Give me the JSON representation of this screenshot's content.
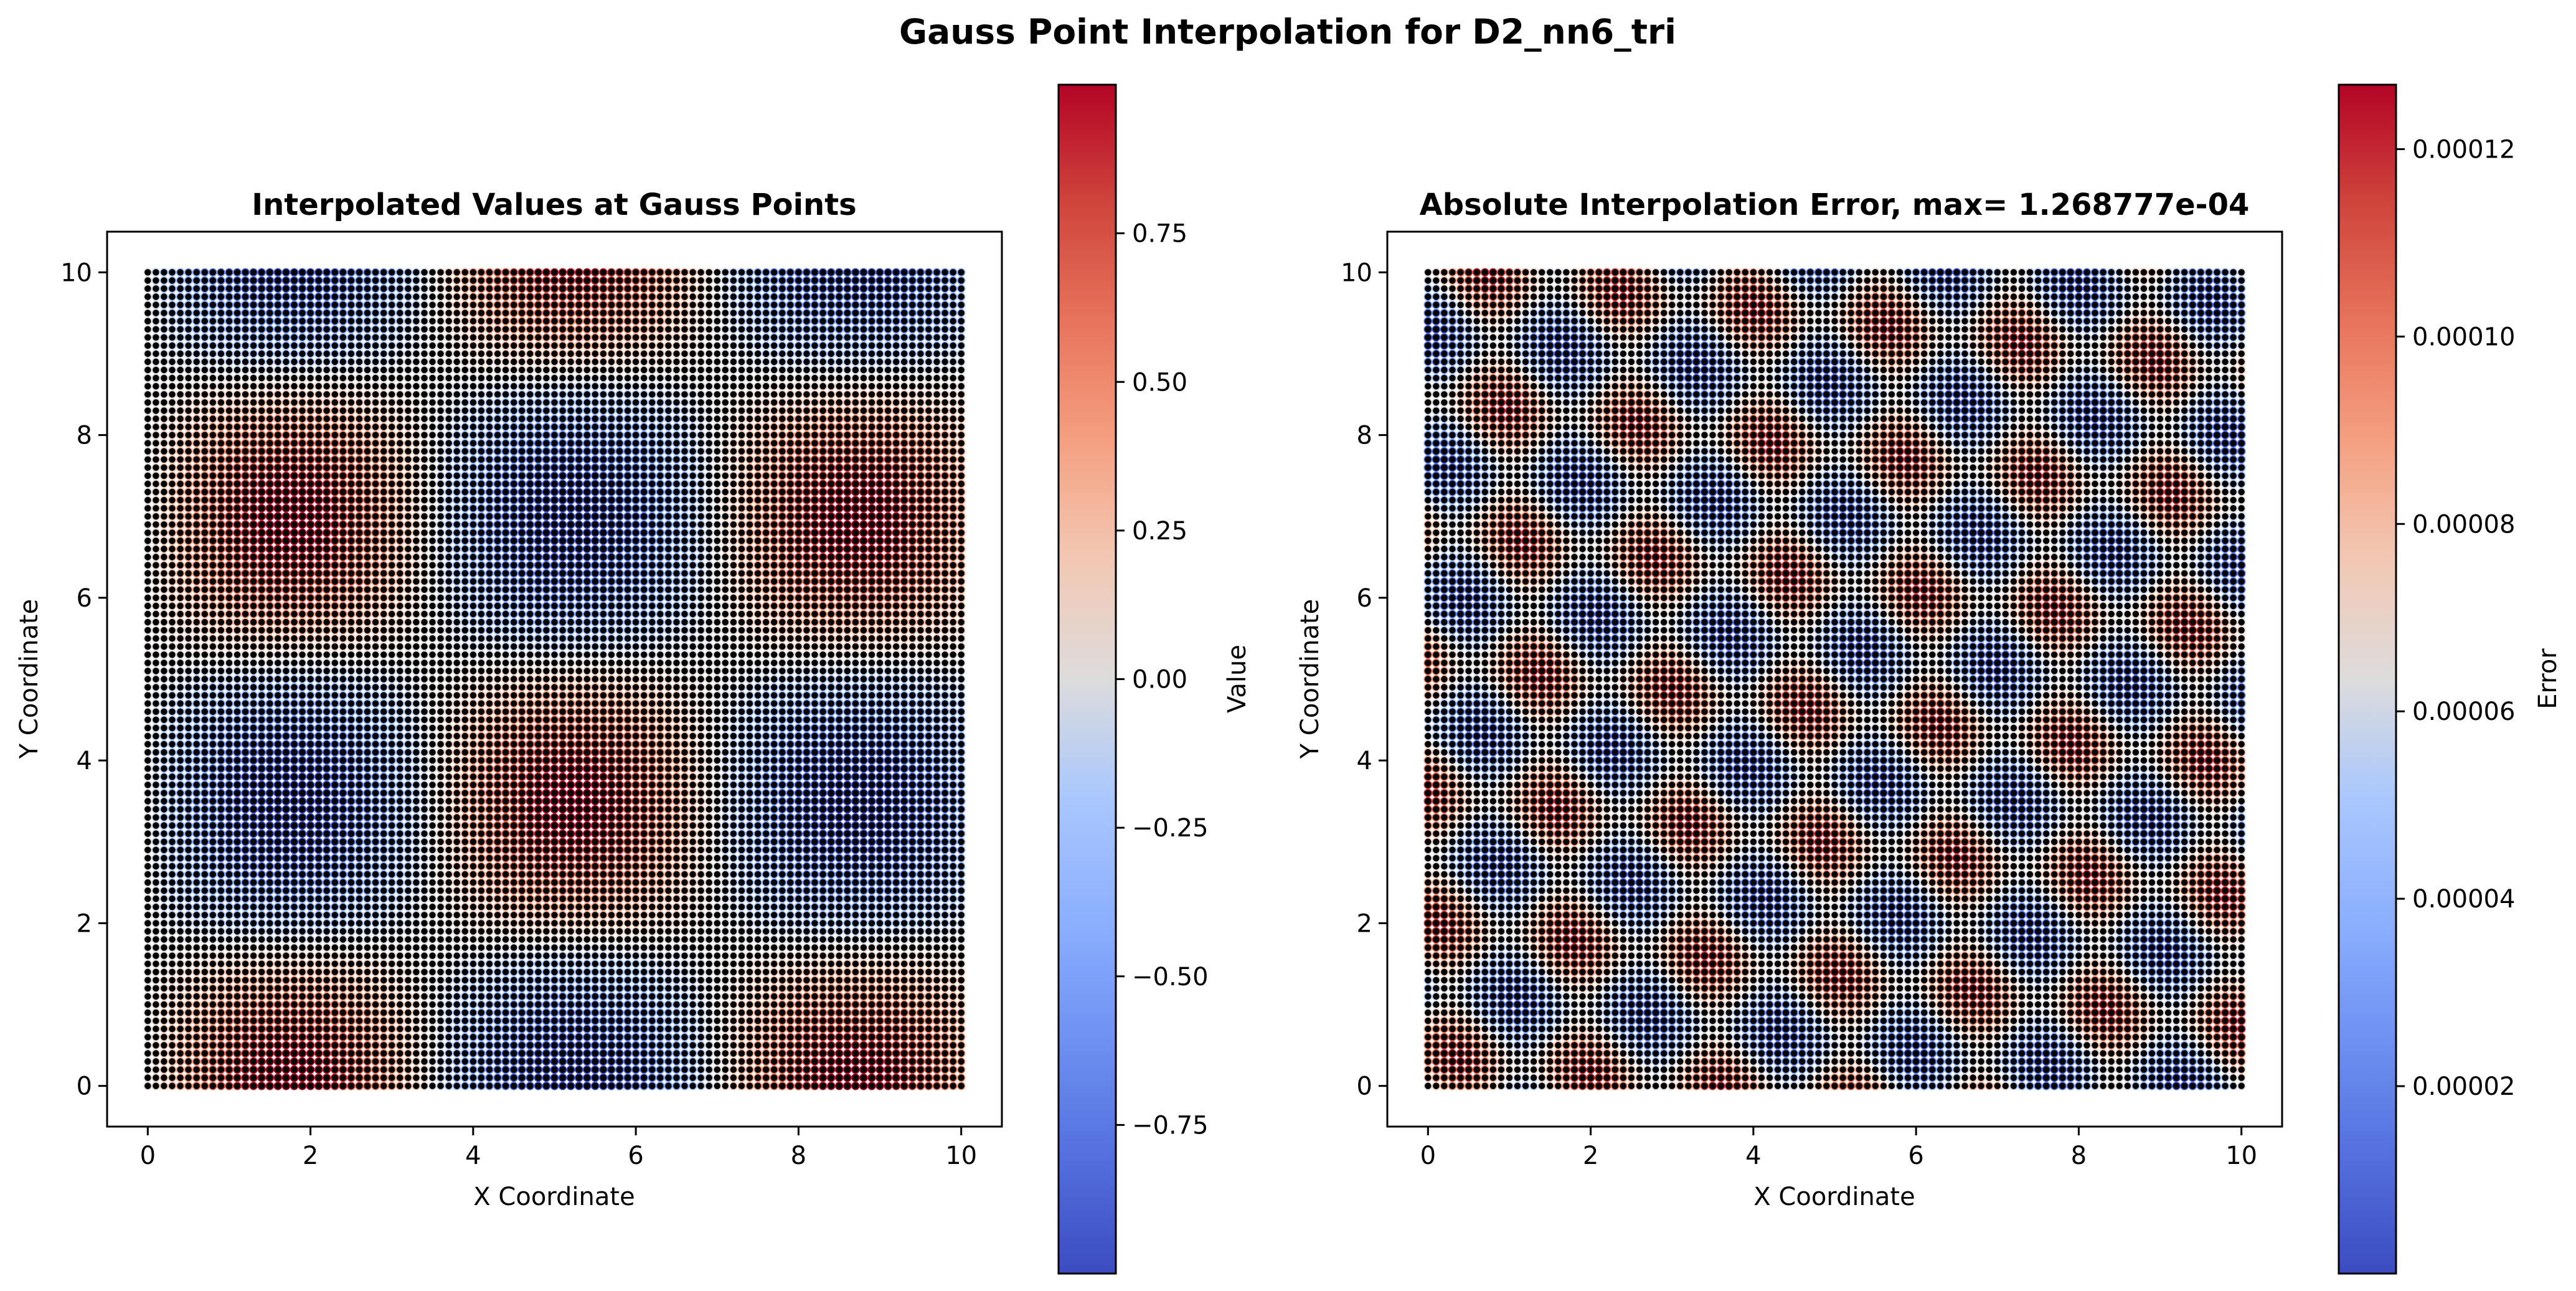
{
  "figure": {
    "suptitle": "Gauss Point Interpolation for D2_nn6_tri"
  },
  "chart_data": [
    {
      "type": "scatter",
      "title": "Interpolated Values at Gauss Points",
      "xlabel": "X Coordinate",
      "ylabel": "Y Coordinate",
      "xlim": [
        -0.5,
        10.5
      ],
      "ylim": [
        -0.5,
        10.5
      ],
      "xticks": [
        "0",
        "2",
        "4",
        "6",
        "8",
        "10"
      ],
      "yticks": [
        "0",
        "2",
        "4",
        "6",
        "8",
        "10"
      ],
      "grid": false,
      "points": {
        "x_range": [
          0,
          10
        ],
        "y_range": [
          0,
          10
        ],
        "count_per_axis": 101,
        "field": "sin-cos pattern, values from -1 to 1",
        "marker_face": "#000000"
      },
      "colorbar": {
        "label": "Value",
        "range": [
          -1.0,
          1.0
        ],
        "ticks": [
          "−0.75",
          "−0.50",
          "−0.25",
          "0.00",
          "0.25",
          "0.50",
          "0.75"
        ],
        "colormap": "coolwarm"
      }
    },
    {
      "type": "scatter",
      "title": "Absolute Interpolation Error, max= 1.268777e-04",
      "xlabel": "X Coordinate",
      "ylabel": "Y Coordinate",
      "xlim": [
        -0.5,
        10.5
      ],
      "ylim": [
        -0.5,
        10.5
      ],
      "xticks": [
        "0",
        "2",
        "4",
        "6",
        "8",
        "10"
      ],
      "yticks": [
        "0",
        "2",
        "4",
        "6",
        "8",
        "10"
      ],
      "grid": false,
      "points": {
        "x_range": [
          0,
          10
        ],
        "y_range": [
          0,
          10
        ],
        "count_per_axis": 101,
        "field": "small periodic error",
        "marker_face": "#000000"
      },
      "colorbar": {
        "label": "Error",
        "range": [
          0.0,
          0.0001268777
        ],
        "ticks": [
          "0.00002",
          "0.00004",
          "0.00006",
          "0.00008",
          "0.00010",
          "0.00012"
        ],
        "colormap": "coolwarm"
      }
    }
  ],
  "colors": {
    "coolwarm_low": "#3b4cc0",
    "coolwarm_mid": "#dddddd",
    "coolwarm_high": "#b40426",
    "axis": "#000000",
    "marker": "#000000"
  }
}
